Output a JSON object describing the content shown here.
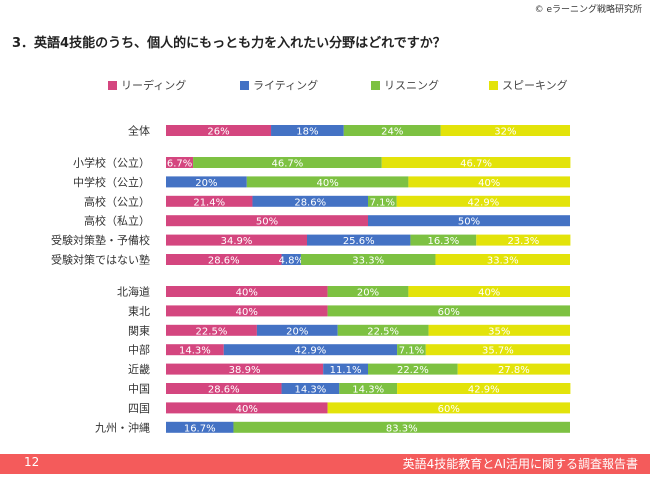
{
  "header": {
    "copyright": "© eラーニング戦略研究所",
    "title": "3．英語4技能のうち、個人的にもっとも力を入れたい分野はどれですか？"
  },
  "footer": {
    "page_number": "12",
    "report_title": "英語4技能教育とAI活用に関する調査報告書",
    "color": "#f45b5b"
  },
  "chart_data": {
    "type": "bar",
    "orientation": "horizontal",
    "stacked": true,
    "percent": true,
    "xlim": [
      0,
      100
    ],
    "legend_position": "top",
    "categories": [
      "全体",
      "小学校（公立）",
      "中学校（公立）",
      "高校（公立）",
      "高校（私立）",
      "受験対策塾・予備校",
      "受験対策ではない塾",
      "北海道",
      "東北",
      "関東",
      "中部",
      "近畿",
      "中国",
      "四国",
      "九州・沖縄"
    ],
    "groups": [
      [
        0
      ],
      [
        1,
        2,
        3,
        4,
        5,
        6
      ],
      [
        7,
        8,
        9,
        10,
        11,
        12,
        13,
        14
      ]
    ],
    "series": [
      {
        "name": "リーディング",
        "color": "#d4467f",
        "values": [
          26,
          6.7,
          0,
          21.4,
          50,
          34.9,
          28.6,
          40,
          40,
          22.5,
          14.3,
          38.9,
          28.6,
          40,
          0
        ],
        "labels": [
          "26%",
          "6.7%",
          "",
          "21.4%",
          "50%",
          "34.9%",
          "28.6%",
          "40%",
          "40%",
          "22.5%",
          "14.3%",
          "38.9%",
          "28.6%",
          "40%",
          ""
        ]
      },
      {
        "name": "ライティング",
        "color": "#4472c4",
        "values": [
          18,
          0,
          20,
          28.6,
          50,
          25.6,
          4.8,
          0,
          0,
          20,
          42.9,
          11.1,
          14.3,
          0,
          16.7
        ],
        "labels": [
          "18%",
          "",
          "20%",
          "28.6%",
          "50%",
          "25.6%",
          "4.8%",
          "",
          "",
          "20%",
          "42.9%",
          "11.1%",
          "14.3%",
          "",
          "16.7%"
        ]
      },
      {
        "name": "リスニング",
        "color": "#7dc142",
        "values": [
          24,
          46.7,
          40,
          7.1,
          0,
          16.3,
          33.3,
          20,
          60,
          22.5,
          7.1,
          22.2,
          14.3,
          0,
          83.3
        ],
        "labels": [
          "24%",
          "46.7%",
          "40%",
          "7.1%",
          "",
          "16.3%",
          "33.3%",
          "20%",
          "60%",
          "22.5%",
          "7.1%",
          "22.2%",
          "14.3%",
          "",
          "83.3%"
        ]
      },
      {
        "name": "スピーキング",
        "color": "#e3e30a",
        "values": [
          32,
          46.7,
          40,
          42.9,
          0,
          23.3,
          33.3,
          40,
          0,
          35,
          35.7,
          27.8,
          42.9,
          60,
          0
        ],
        "labels": [
          "32%",
          "46.7%",
          "40%",
          "42.9%",
          "",
          "23.3%",
          "33.3%",
          "40%",
          "",
          "35%",
          "35.7%",
          "27.8%",
          "42.9%",
          "60%",
          ""
        ]
      }
    ]
  }
}
